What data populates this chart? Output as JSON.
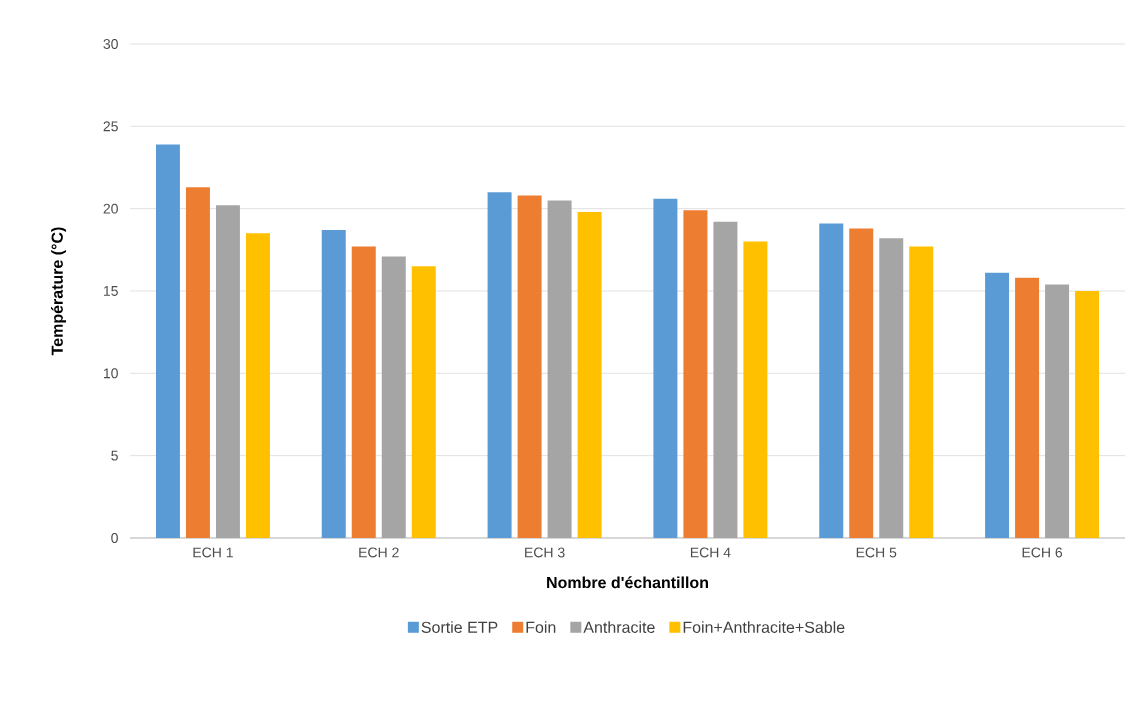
{
  "chart_data": {
    "type": "bar",
    "xlabel": "Nombre d'échantillon",
    "ylabel": "Température (°C)",
    "categories": [
      "ECH 1",
      "ECH 2",
      "ECH 3",
      "ECH 4",
      "ECH 5",
      "ECH 6"
    ],
    "series": [
      {
        "name": "Sortie ETP",
        "color": "#5b9bd5",
        "values": [
          23.9,
          18.7,
          21.0,
          20.6,
          19.1,
          16.1
        ]
      },
      {
        "name": "Foin",
        "color": "#ed7d31",
        "values": [
          21.3,
          17.7,
          20.8,
          19.9,
          18.8,
          15.8
        ]
      },
      {
        "name": "Anthracite",
        "color": "#a5a5a5",
        "values": [
          20.2,
          17.1,
          20.5,
          19.2,
          18.2,
          15.4
        ]
      },
      {
        "name": "Foin+Anthracite+Sable",
        "color": "#ffc000",
        "values": [
          18.5,
          16.5,
          19.8,
          18.0,
          17.7,
          15.0
        ]
      }
    ],
    "ylim": [
      0,
      30
    ],
    "yticks": [
      0,
      5,
      10,
      15,
      20,
      25,
      30
    ],
    "grid": "y",
    "legend": "bottom"
  }
}
